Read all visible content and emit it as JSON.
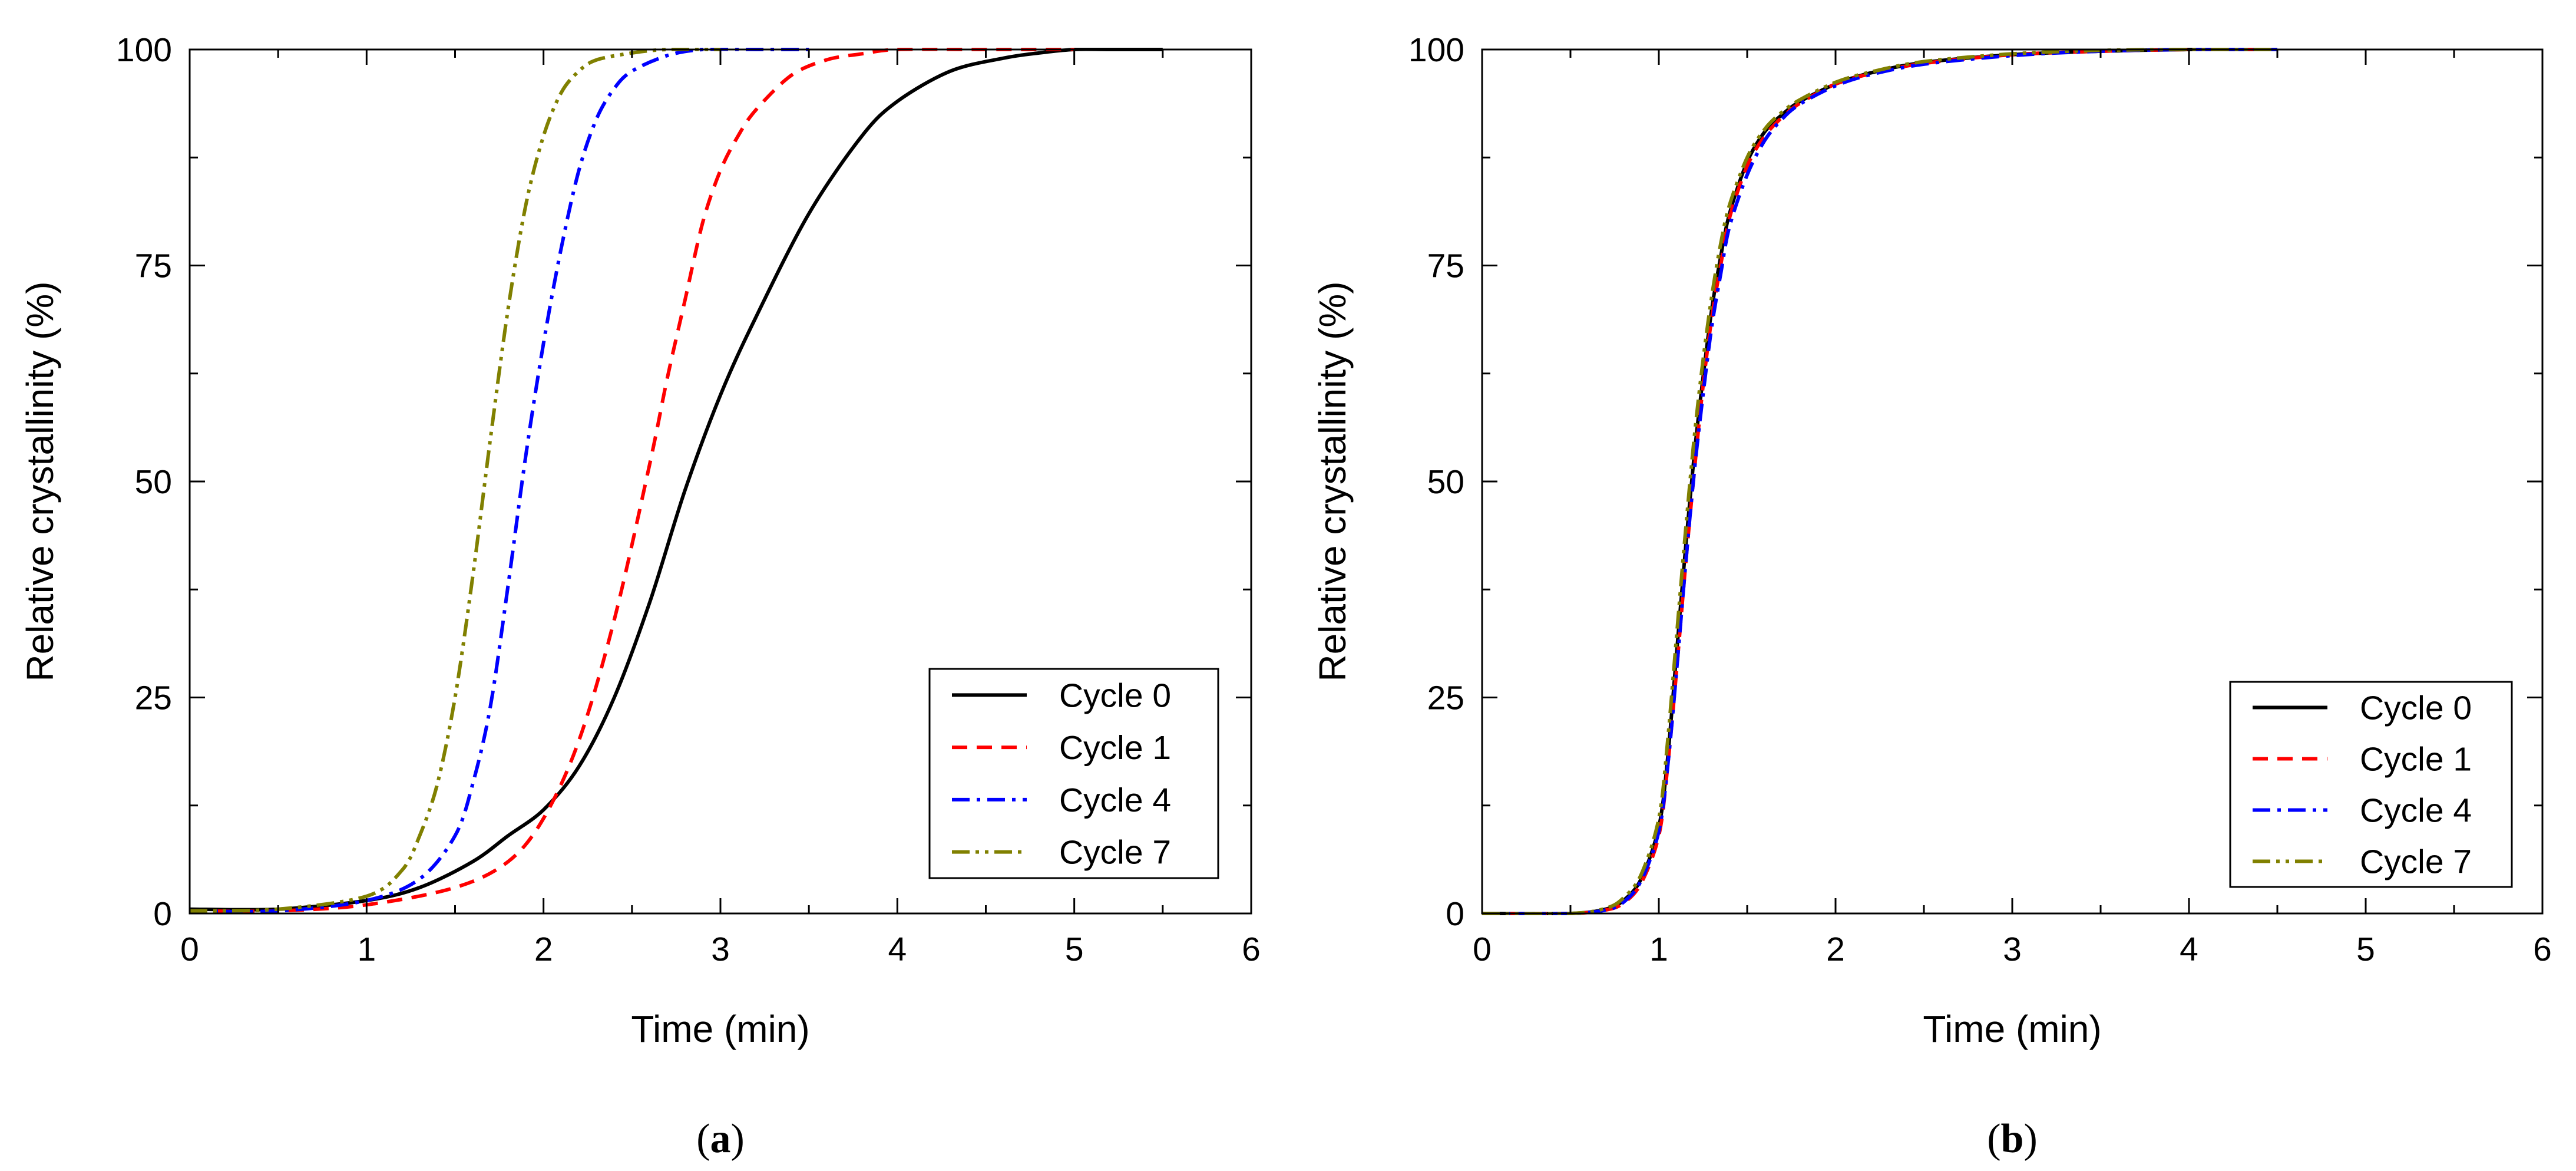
{
  "chart_data": [
    {
      "type": "line",
      "panel_label": "(a)",
      "panel_label_parts": [
        "(",
        "a",
        ")"
      ],
      "xlabel": "Time (min)",
      "ylabel": "Relative crystallinity (%)",
      "xlim": [
        0,
        6
      ],
      "ylim": [
        0,
        100
      ],
      "xticks": [
        0,
        1,
        2,
        3,
        4,
        5,
        6
      ],
      "yticks": [
        0,
        25,
        50,
        75,
        100
      ],
      "legend_position": "bottom-right",
      "series": [
        {
          "name": "Cycle 0",
          "color": "#000000",
          "dash": "solid",
          "x": [
            0,
            0.5,
            1.0,
            1.3,
            1.6,
            1.8,
            2.0,
            2.2,
            2.4,
            2.6,
            2.8,
            3.0,
            3.2,
            3.5,
            3.8,
            4.0,
            4.3,
            4.6,
            4.8,
            5.0,
            5.2,
            5.5
          ],
          "y": [
            0.5,
            0.5,
            1.5,
            3,
            6,
            9,
            12,
            17,
            25,
            36,
            49,
            60,
            69,
            81,
            90,
            94,
            97.5,
            99,
            99.6,
            100,
            100,
            100
          ]
        },
        {
          "name": "Cycle 1",
          "color": "#ff0000",
          "dash": "dashed",
          "x": [
            0,
            0.5,
            1.0,
            1.5,
            1.8,
            2.0,
            2.2,
            2.4,
            2.6,
            2.7,
            2.8,
            2.9,
            3.0,
            3.1,
            3.2,
            3.4,
            3.6,
            3.8,
            4.0,
            4.5,
            5.0
          ],
          "y": [
            0.3,
            0.3,
            1,
            3,
            6,
            11,
            20,
            34,
            52,
            62,
            71,
            80,
            86,
            90,
            93,
            97,
            98.8,
            99.5,
            100,
            100,
            100
          ]
        },
        {
          "name": "Cycle 4",
          "color": "#0000ff",
          "dash": "dashdot",
          "x": [
            0,
            0.5,
            1.0,
            1.3,
            1.5,
            1.6,
            1.7,
            1.8,
            1.9,
            2.0,
            2.1,
            2.2,
            2.3,
            2.4,
            2.5,
            2.7,
            2.9,
            3.2,
            3.5
          ],
          "y": [
            0.3,
            0.3,
            1.5,
            4,
            9,
            15,
            24,
            38,
            53,
            66,
            77,
            86,
            92,
            95.5,
            97.5,
            99.3,
            100,
            100,
            100
          ]
        },
        {
          "name": "Cycle 7",
          "color": "#808000",
          "dash": "dashdotdot",
          "x": [
            0,
            0.5,
            1.0,
            1.2,
            1.3,
            1.4,
            1.5,
            1.6,
            1.7,
            1.8,
            1.9,
            2.0,
            2.1,
            2.2,
            2.3,
            2.5,
            2.7,
            3.0
          ],
          "y": [
            0.3,
            0.5,
            2,
            5,
            9,
            15,
            25,
            39,
            55,
            70,
            82,
            90,
            95,
            97.5,
            98.8,
            99.6,
            100,
            100
          ]
        }
      ]
    },
    {
      "type": "line",
      "panel_label": "(b)",
      "panel_label_parts": [
        "(",
        "b",
        ")"
      ],
      "xlabel": "Time (min)",
      "ylabel": "Relative crystallinity (%)",
      "xlim": [
        0,
        6
      ],
      "ylim": [
        0,
        100
      ],
      "xticks": [
        0,
        1,
        2,
        3,
        4,
        5,
        6
      ],
      "yticks": [
        0,
        25,
        50,
        75,
        100
      ],
      "legend_position": "bottom-right",
      "series": [
        {
          "name": "Cycle 0",
          "color": "#000000",
          "dash": "solid",
          "x": [
            0,
            0.5,
            0.7,
            0.8,
            0.9,
            1.0,
            1.05,
            1.1,
            1.15,
            1.2,
            1.25,
            1.3,
            1.35,
            1.4,
            1.5,
            1.6,
            1.7,
            1.8,
            2.0,
            2.2,
            2.5,
            3.0,
            3.5,
            4.0,
            4.5
          ],
          "y": [
            0,
            0,
            0.5,
            1.5,
            4,
            10,
            18,
            30,
            42,
            53,
            62,
            70,
            76,
            81,
            87,
            90.5,
            92.5,
            94,
            96,
            97.3,
            98.5,
            99.4,
            99.8,
            100,
            100
          ]
        },
        {
          "name": "Cycle 1",
          "color": "#ff0000",
          "dash": "dashed",
          "x": [
            0,
            0.5,
            0.7,
            0.8,
            0.9,
            1.0,
            1.05,
            1.1,
            1.15,
            1.2,
            1.25,
            1.3,
            1.35,
            1.4,
            1.5,
            1.6,
            1.7,
            1.8,
            2.0,
            2.2,
            2.5,
            3.0,
            3.5,
            4.0,
            4.5
          ],
          "y": [
            0,
            0,
            0.4,
            1.2,
            3.5,
            9,
            17,
            28,
            40,
            51,
            61,
            69,
            75,
            80.5,
            86.5,
            90,
            92.2,
            93.8,
            96,
            97.2,
            98.4,
            99.4,
            99.8,
            100,
            100
          ]
        },
        {
          "name": "Cycle 4",
          "color": "#0000ff",
          "dash": "dashdot",
          "x": [
            0,
            0.5,
            0.7,
            0.8,
            0.9,
            1.0,
            1.05,
            1.1,
            1.15,
            1.2,
            1.25,
            1.3,
            1.35,
            1.4,
            1.5,
            1.6,
            1.7,
            1.8,
            2.0,
            2.2,
            2.5,
            3.0,
            3.5,
            4.0,
            4.5
          ],
          "y": [
            0,
            0,
            0.4,
            1.3,
            3.8,
            9.5,
            17,
            28,
            40,
            51,
            60,
            68,
            74,
            79.5,
            85.5,
            89.5,
            92,
            93.7,
            95.8,
            97.1,
            98.3,
            99.3,
            99.8,
            100,
            100
          ]
        },
        {
          "name": "Cycle 7",
          "color": "#808000",
          "dash": "dashdotdot",
          "x": [
            0,
            0.5,
            0.7,
            0.8,
            0.9,
            1.0,
            1.05,
            1.1,
            1.15,
            1.2,
            1.25,
            1.3,
            1.35,
            1.4,
            1.5,
            1.6,
            1.7,
            1.8,
            2.0,
            2.2,
            2.5,
            3.0,
            3.5,
            4.0,
            4.5
          ],
          "y": [
            0,
            0,
            0.6,
            1.8,
            4.5,
            11,
            20,
            32,
            44,
            55,
            64,
            71.5,
            77.5,
            82,
            87.5,
            90.8,
            92.8,
            94.2,
            96.2,
            97.4,
            98.6,
            99.5,
            99.9,
            100,
            100
          ]
        }
      ]
    }
  ]
}
